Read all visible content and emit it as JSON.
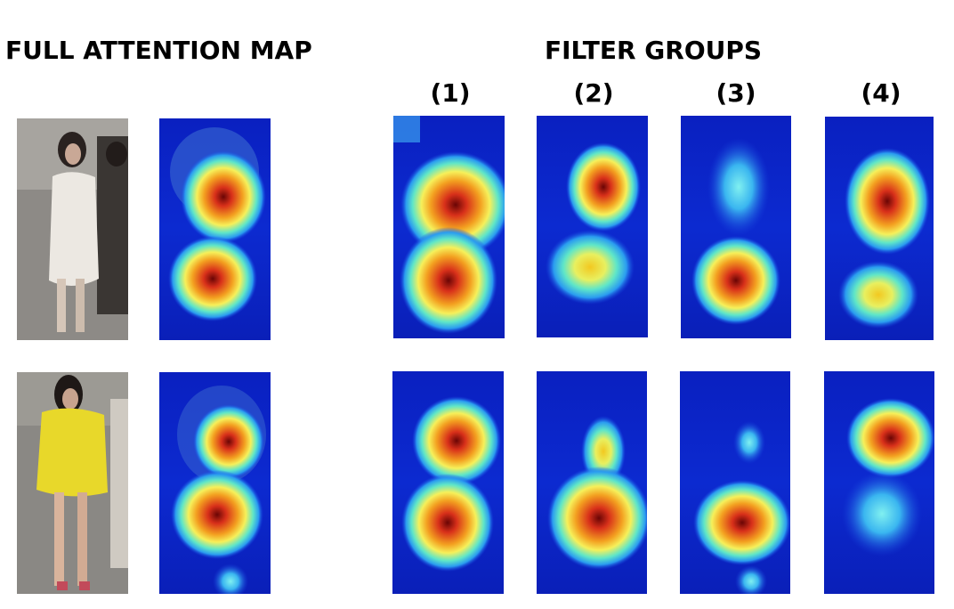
{
  "left_title": "FULL ATTENTION MAP",
  "right_title": "FILTER GROUPS",
  "group_labels": [
    "(1)",
    "(2)",
    "(3)",
    "(4)"
  ],
  "colors": {
    "heat_bg": "#0a1fb8",
    "heat_hot": "#e0401a",
    "heat_core": "#7a0a0a",
    "photo1_dress": "#e8e4df",
    "photo2_dress": "#e6d62a"
  },
  "rows": [
    {
      "person": "person-white-dress",
      "tiles": [
        "photo",
        "full-attention",
        "group-1",
        "group-2",
        "group-3",
        "group-4"
      ]
    },
    {
      "person": "person-yellow-dress",
      "tiles": [
        "photo",
        "full-attention",
        "group-1",
        "group-2",
        "group-3",
        "group-4"
      ]
    }
  ]
}
